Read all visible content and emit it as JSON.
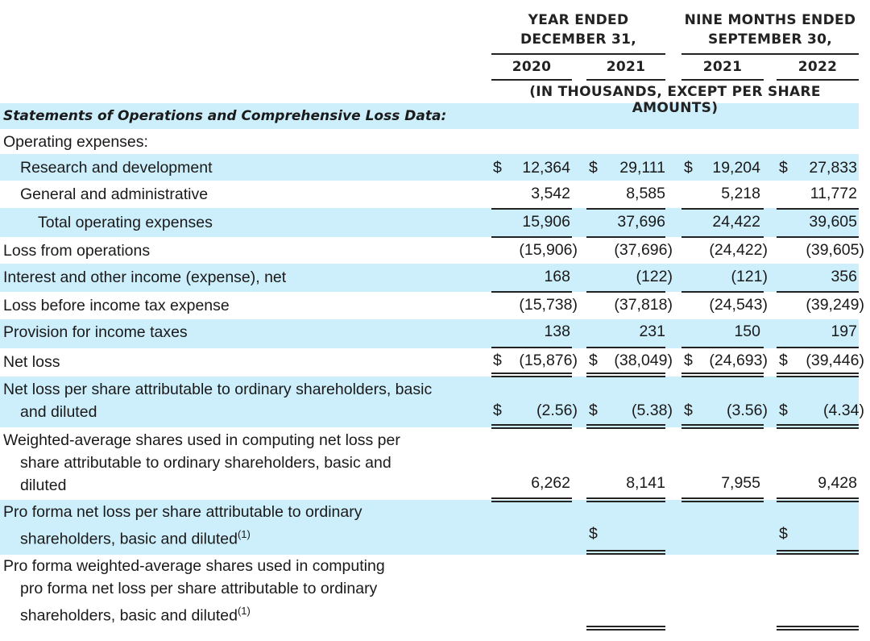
{
  "header": {
    "year_ended_l1": "YEAR ENDED",
    "year_ended_l2": "DECEMBER 31,",
    "nine_months_l1": "NINE MONTHS ENDED",
    "nine_months_l2": "SEPTEMBER 30,",
    "col_2020": "2020",
    "col_2021a": "2021",
    "col_2021b": "2021",
    "col_2022": "2022",
    "units": "(IN THOUSANDS, EXCEPT PER SHARE AMOUNTS)"
  },
  "section_title": "Statements of Operations and Comprehensive Loss Data:",
  "rows": {
    "operating_expenses": "Operating expenses:",
    "research": {
      "label": "Research and development",
      "dollar": "$",
      "values": [
        "12,364",
        "29,111",
        "19,204",
        "27,833"
      ]
    },
    "general": {
      "label": "General and administrative",
      "values": [
        "3,542",
        "8,585",
        "5,218",
        "11,772"
      ]
    },
    "total_opex": {
      "label": "Total operating expenses",
      "values": [
        "15,906",
        "37,696",
        "24,422",
        "39,605"
      ]
    },
    "loss_ops": {
      "label": "Loss from operations",
      "values": [
        "(15,906)",
        "(37,696)",
        "(24,422)",
        "(39,605)"
      ]
    },
    "interest": {
      "label": "Interest and other income (expense), net",
      "values": [
        "168",
        "(122)",
        "(121)",
        "356"
      ]
    },
    "loss_before_tax": {
      "label": "Loss before income tax expense",
      "values": [
        "(15,738)",
        "(37,818)",
        "(24,543)",
        "(39,249)"
      ]
    },
    "provision": {
      "label": "Provision for income taxes",
      "values": [
        "138",
        "231",
        "150",
        "197"
      ]
    },
    "net_loss": {
      "label": "Net loss",
      "dollar": "$",
      "values": [
        "(15,876)",
        "(38,049)",
        "(24,693)",
        "(39,446)"
      ]
    },
    "eps": {
      "label_l1": "Net loss per share attributable to ordinary shareholders, basic",
      "label_l2": "and diluted",
      "dollar": "$",
      "values": [
        "(2.56)",
        "(5.38)",
        "(3.56)",
        "(4.34)"
      ]
    },
    "wavg": {
      "label_l1": "Weighted-average shares used in computing net loss per",
      "label_l2": "share attributable to ordinary shareholders, basic and",
      "label_l3": "diluted",
      "values": [
        "6,262",
        "8,141",
        "7,955",
        "9,428"
      ]
    },
    "proforma_eps": {
      "label_l1": "Pro forma net loss per share attributable to ordinary",
      "label_l2": "shareholders, basic and diluted",
      "footnote": "(1)",
      "dollar": "$"
    },
    "proforma_wavg": {
      "label_l1": "Pro forma weighted-average shares used in computing",
      "label_l2": "pro forma net loss per share attributable to ordinary",
      "label_l3": "shareholders, basic and diluted",
      "footnote": "(1)"
    }
  }
}
